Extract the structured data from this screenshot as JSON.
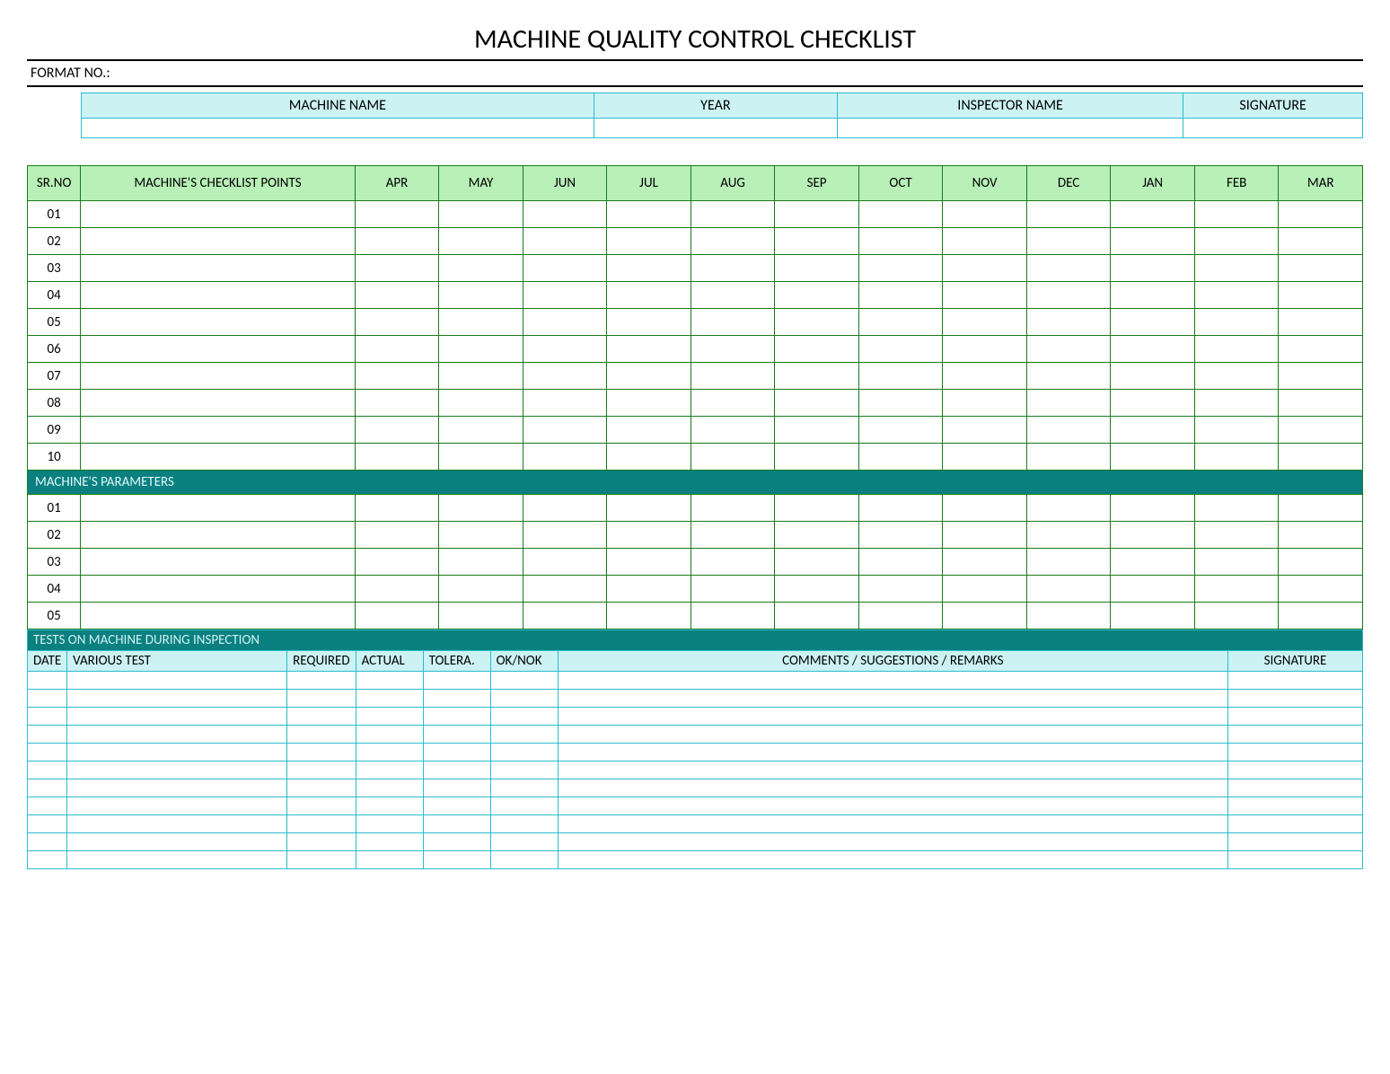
{
  "title": "MACHINE QUALITY CONTROL CHECKLIST",
  "format_label": "FORMAT NO.:",
  "info": {
    "headers": [
      "MACHINE NAME",
      "YEAR",
      "INSPECTOR NAME",
      "SIGNATURE"
    ],
    "widths": [
      "40%",
      "19%",
      "27%",
      "14%"
    ]
  },
  "checklist": {
    "sr_header": "SR.NO",
    "points_header": "MACHINE'S CHECKLIST POINTS",
    "months": [
      "APR",
      "MAY",
      "JUN",
      "JUL",
      "AUG",
      "SEP",
      "OCT",
      "NOV",
      "DEC",
      "JAN",
      "FEB",
      "MAR"
    ],
    "rows": [
      "01",
      "02",
      "03",
      "04",
      "05",
      "06",
      "07",
      "08",
      "09",
      "10"
    ],
    "params_section": "MACHINE'S PARAMETERS",
    "param_rows": [
      "01",
      "02",
      "03",
      "04",
      "05"
    ]
  },
  "tests": {
    "section": "TESTS ON MACHINE DURING INSPECTION",
    "headers": {
      "date": "DATE",
      "various": "VARIOUS TEST",
      "required": "REQUIRED",
      "actual": "ACTUAL",
      "tolera": "TOLERA.",
      "oknok": "OK/NOK",
      "comments": "COMMENTS / SUGGESTIONS / REMARKS",
      "signature": "SIGNATURE"
    },
    "row_count": 11
  },
  "colors": {
    "title_rule": "#000000",
    "green_border": "#1a7a1a",
    "green_fill": "#b8f0b8",
    "teal_border": "#2bbccd",
    "teal_fill": "#ccf2f4",
    "teal_bar": "#0a8080",
    "teal_bar_text": "#e0f7f7"
  }
}
